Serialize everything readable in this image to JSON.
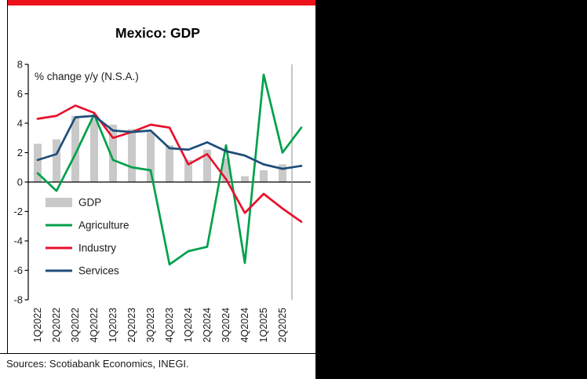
{
  "page": {
    "sources_text": "Sources: Scotiabank Economics, INEGI.",
    "accent_red": "#ec111a",
    "panel_bg": "#ffffff",
    "side_bg": "#000000"
  },
  "chart_data": {
    "type": "combo-bar-line",
    "title": "Mexico: GDP",
    "annotation": "% change y/y (N.S.A.)",
    "categories": [
      "1Q2022",
      "2Q2022",
      "3Q2022",
      "4Q2022",
      "1Q2023",
      "2Q2023",
      "3Q2023",
      "4Q2023",
      "1Q2024",
      "2Q2024",
      "3Q2024",
      "4Q2024",
      "1Q2025",
      "2Q2025",
      ""
    ],
    "ylim": [
      -8,
      8
    ],
    "yticks": [
      8,
      6,
      4,
      2,
      0,
      -2,
      -4,
      -6,
      -8
    ],
    "grid": false,
    "legend_position": "inside-left",
    "divider_x_index": 13.5,
    "series": [
      {
        "name": "GDP",
        "type": "bar",
        "color": "#c9c9c9",
        "values": [
          2.6,
          2.9,
          4.5,
          4.3,
          3.9,
          3.6,
          3.4,
          2.5,
          1.5,
          2.2,
          1.6,
          0.4,
          0.8,
          1.2,
          null
        ]
      },
      {
        "name": "Agriculture",
        "type": "line",
        "color": "#00a14b",
        "values": [
          0.6,
          -0.6,
          1.9,
          4.6,
          1.5,
          1.0,
          0.8,
          -5.6,
          -4.7,
          -4.4,
          2.5,
          -5.5,
          7.3,
          2.0,
          3.7
        ]
      },
      {
        "name": "Industry",
        "type": "line",
        "color": "#e8112d",
        "values": [
          4.3,
          4.5,
          5.2,
          4.7,
          3.0,
          3.4,
          3.9,
          3.7,
          1.2,
          1.9,
          0.2,
          -2.1,
          -0.8,
          -1.8,
          -2.7
        ]
      },
      {
        "name": "Services",
        "type": "line",
        "color": "#1f4e79",
        "values": [
          1.5,
          1.9,
          4.4,
          4.5,
          3.5,
          3.4,
          3.5,
          2.3,
          2.2,
          2.7,
          2.1,
          1.8,
          1.2,
          0.9,
          1.1
        ]
      }
    ]
  }
}
